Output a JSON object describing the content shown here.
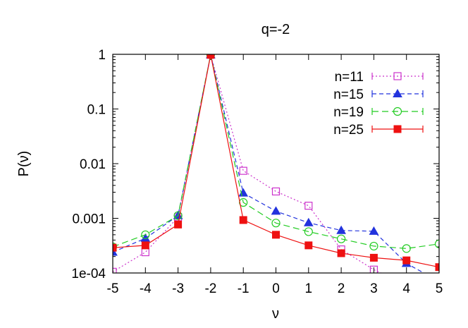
{
  "chart_data": {
    "type": "line",
    "title": "q=-2",
    "xlabel": "ν",
    "ylabel": "P(ν)",
    "xlim": [
      -5,
      5
    ],
    "ylim": [
      0.0001,
      1
    ],
    "yscale": "log",
    "grid": false,
    "legend_position": "top-right",
    "x_ticks": [
      -5,
      -4,
      -3,
      -2,
      -1,
      0,
      1,
      2,
      3,
      4,
      5
    ],
    "x_tick_labels": [
      "-5",
      "-4",
      "-3",
      "-2",
      "-1",
      "0",
      "1",
      "2",
      "3",
      "4",
      "5"
    ],
    "y_ticks": [
      0.0001,
      0.001,
      0.01,
      0.1,
      1
    ],
    "y_tick_labels": [
      "1e-04",
      "0.001",
      "0.01",
      "0.1",
      "1"
    ],
    "series": [
      {
        "name": "n=11",
        "color": "#cc33cc",
        "marker": "open-square",
        "dash": "2,3",
        "x": [
          -5,
          -4,
          -3,
          -2,
          -1,
          0,
          1,
          2,
          3,
          4
        ],
        "y": [
          0.000105,
          0.00024,
          0.00105,
          0.98,
          0.0074,
          0.0031,
          0.0017,
          0.00027,
          0.000115,
          6e-05
        ]
      },
      {
        "name": "n=15",
        "color": "#2233dd",
        "marker": "filled-triangle",
        "dash": "6,4",
        "x": [
          -5,
          -4,
          -3,
          -2,
          -1,
          0,
          1,
          2,
          3,
          4,
          5
        ],
        "y": [
          0.00024,
          0.00043,
          0.00112,
          0.98,
          0.0029,
          0.00135,
          0.00083,
          0.0006,
          0.00058,
          0.00015,
          7e-05
        ]
      },
      {
        "name": "n=19",
        "color": "#22cc22",
        "marker": "open-circle",
        "dash": "9,5",
        "x": [
          -5,
          -4,
          -3,
          -2,
          -1,
          0,
          1,
          2,
          3,
          4,
          5
        ],
        "y": [
          0.0003,
          0.0005,
          0.00112,
          0.98,
          0.00195,
          0.00082,
          0.00057,
          0.00042,
          0.00031,
          0.00028,
          0.00034
        ]
      },
      {
        "name": "n=25",
        "color": "#ee1111",
        "marker": "filled-square",
        "dash": "",
        "x": [
          -5,
          -4,
          -3,
          -2,
          -1,
          0,
          1,
          2,
          3,
          4,
          5
        ],
        "y": [
          0.00029,
          0.00032,
          0.00077,
          0.98,
          0.00093,
          0.0005,
          0.00032,
          0.00023,
          0.00019,
          0.00017,
          0.000128
        ]
      }
    ]
  }
}
